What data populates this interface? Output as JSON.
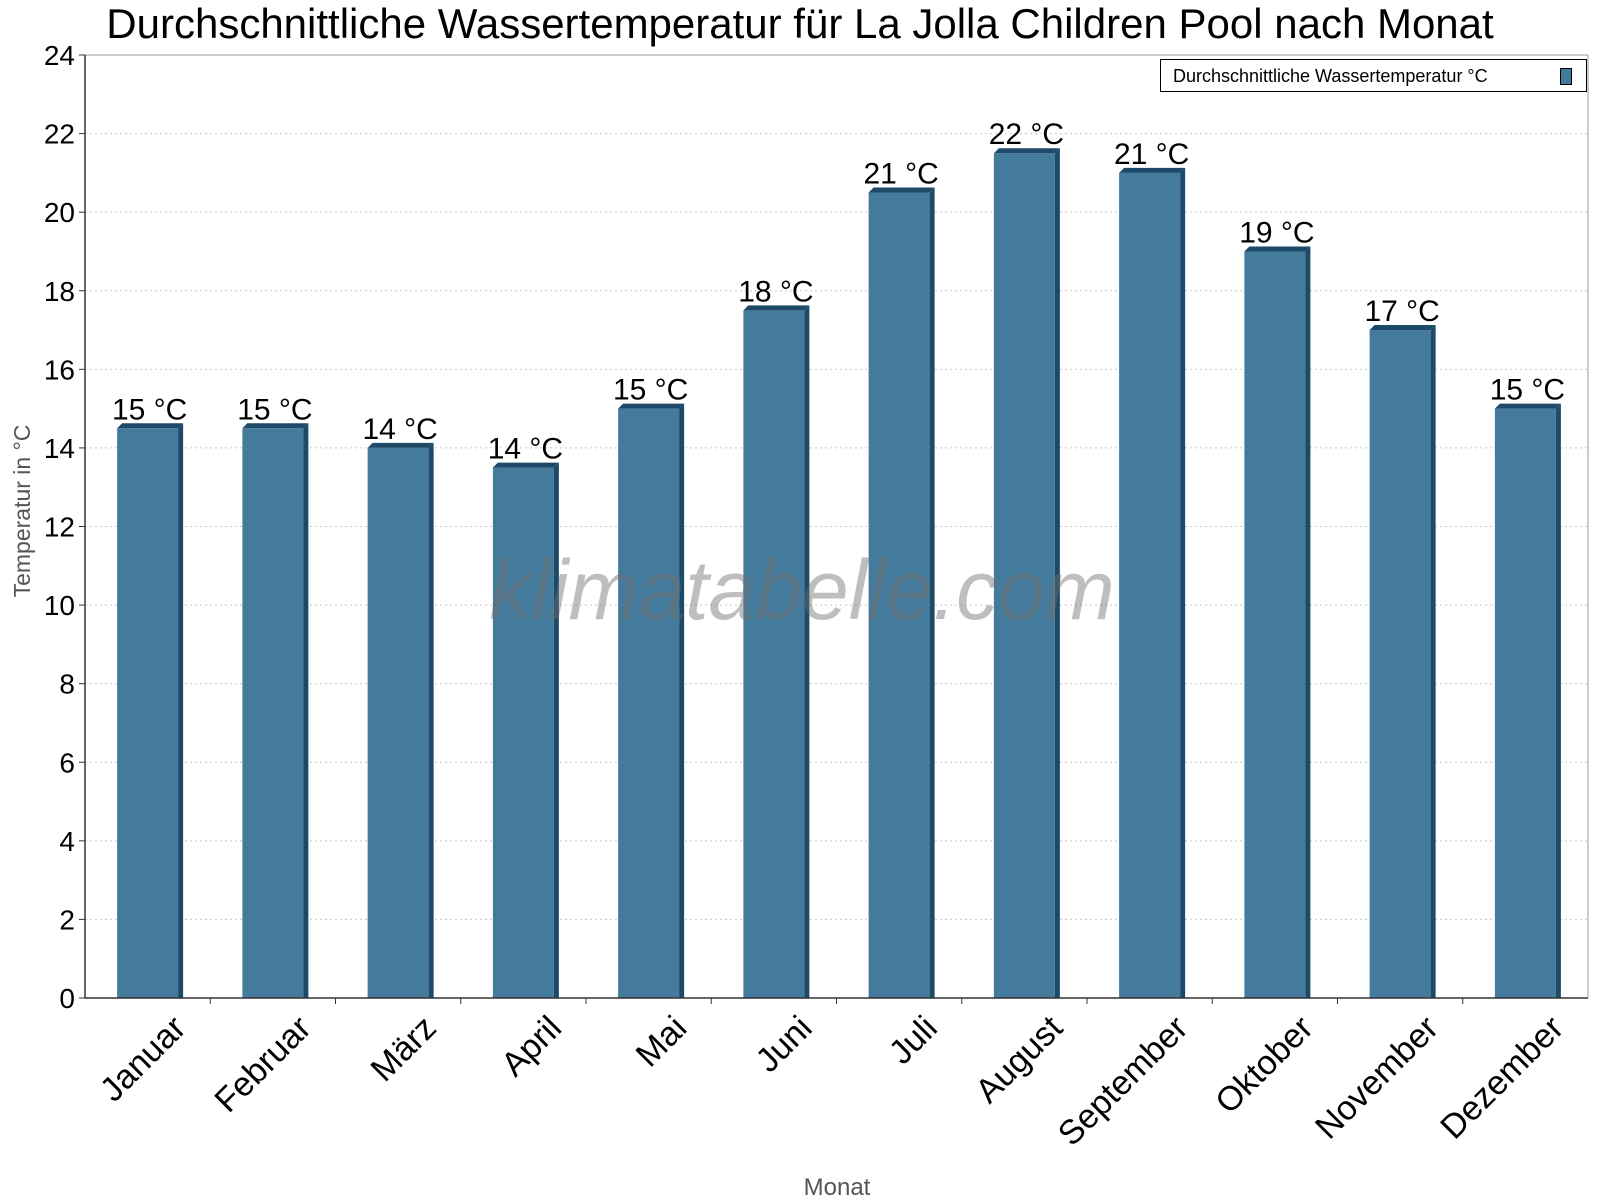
{
  "chart_data": {
    "type": "bar",
    "title": "Durchschnittliche Wassertemperatur für La Jolla Children Pool nach Monat",
    "xlabel": "Monat",
    "ylabel": "Temperatur in °C",
    "ylim": [
      0,
      24
    ],
    "yticks": [
      0,
      2,
      4,
      6,
      8,
      10,
      12,
      14,
      16,
      18,
      20,
      22,
      24
    ],
    "grid": true,
    "legend_position": "top-right",
    "categories": [
      "Januar",
      "Februar",
      "März",
      "April",
      "Mai",
      "Juni",
      "Juli",
      "August",
      "September",
      "Oktober",
      "November",
      "Dezember"
    ],
    "series": [
      {
        "name": "Durchschnittliche Wassertemperatur °C",
        "color": "#447a9c",
        "values": [
          14.5,
          14.5,
          14.0,
          13.5,
          15.0,
          17.5,
          20.5,
          21.5,
          21.0,
          19.0,
          17.0,
          15.0
        ],
        "labels": [
          "15 °C",
          "15 °C",
          "14 °C",
          "14 °C",
          "15 °C",
          "18 °C",
          "21 °C",
          "22 °C",
          "21 °C",
          "19 °C",
          "17 °C",
          "15 °C"
        ]
      }
    ]
  },
  "watermark": "klimatabelle.com"
}
